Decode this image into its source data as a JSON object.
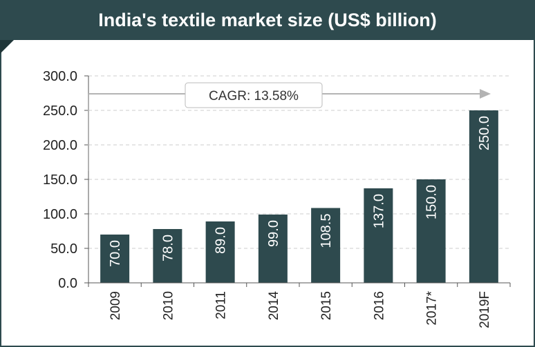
{
  "chart_data": {
    "type": "bar",
    "title": "India's textile market size (US$ billion)",
    "categories": [
      "2009",
      "2010",
      "2011",
      "2014",
      "2015",
      "2016",
      "2017*",
      "2019F"
    ],
    "values": [
      70.0,
      78.0,
      89.0,
      99.0,
      108.5,
      137.0,
      150.0,
      250.0
    ],
    "data_labels": [
      "70.0",
      "78.0",
      "89.0",
      "99.0",
      "108.5",
      "137.0",
      "150.0",
      "250.0"
    ],
    "yticks": [
      "0.0",
      "50.0",
      "100.0",
      "150.0",
      "200.0",
      "250.0",
      "300.0"
    ],
    "ylim": [
      0,
      300
    ],
    "grid": true,
    "annotation": "CAGR: 13.58%",
    "colors": {
      "bar": "#2e4a4e",
      "title_bg": "#2e4a4e",
      "gridline": "#cccccc",
      "arrow": "#b3b3b3"
    }
  }
}
